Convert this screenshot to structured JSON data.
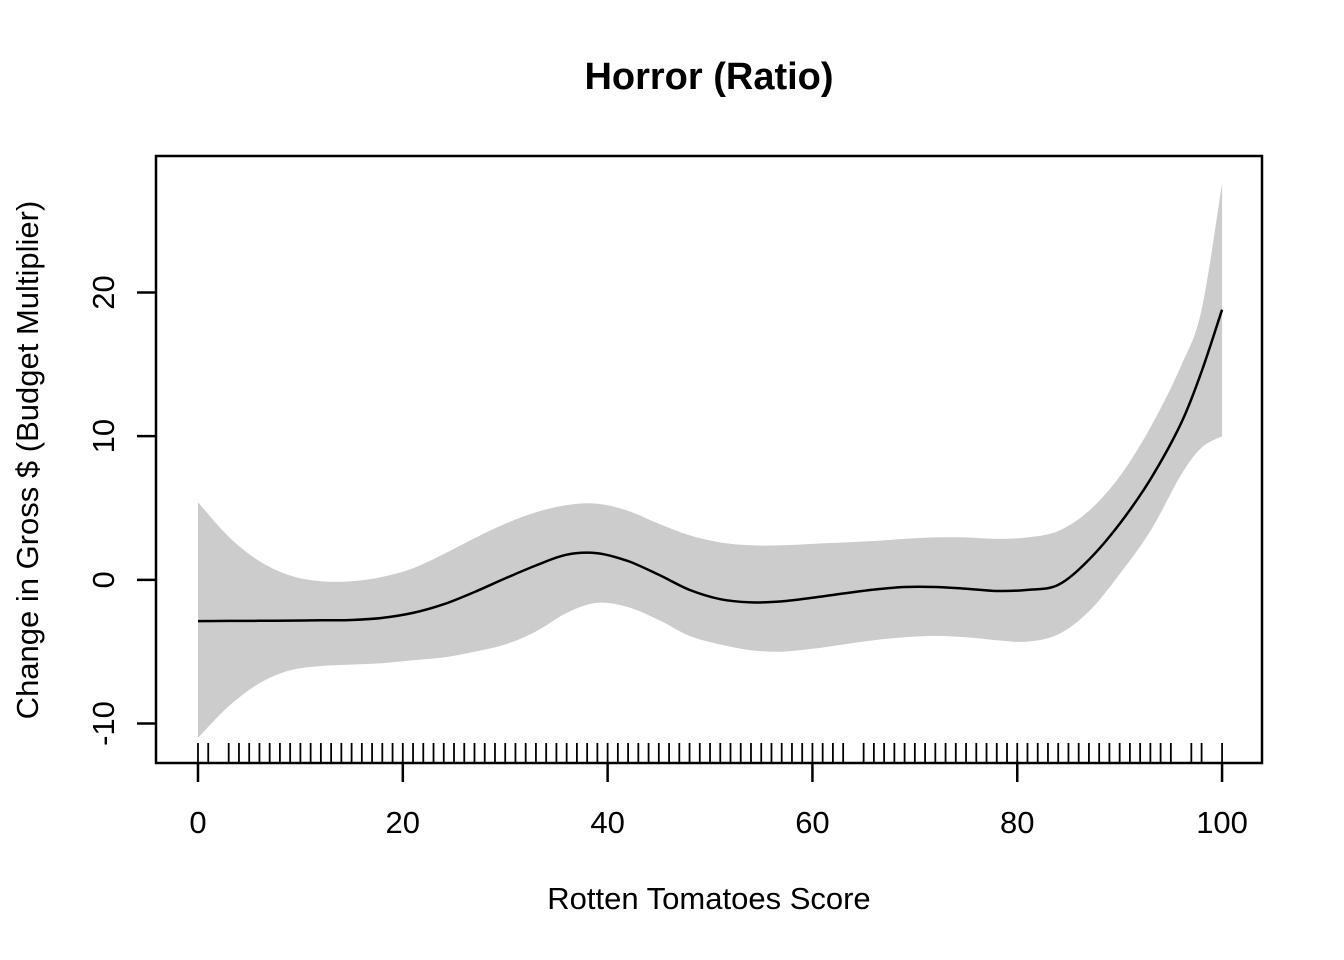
{
  "chart_data": {
    "type": "line",
    "title": "Horror (Ratio)",
    "xlabel": "Rotten Tomatoes Score",
    "ylabel": "Change in Gross $ (Budget Multiplier)",
    "xlim": [
      -4.1,
      103.9
    ],
    "ylim": [
      -12.75,
      29.5
    ],
    "x_ticks": [
      0,
      20,
      40,
      60,
      80,
      100
    ],
    "y_ticks": [
      -10,
      0,
      10,
      20
    ],
    "grid": false,
    "legend": "none",
    "band_color": "#cccccc",
    "line_color": "#000000",
    "x": [
      0,
      3,
      6,
      9,
      12,
      15,
      18,
      21,
      24,
      27,
      30,
      33,
      36,
      39,
      42,
      45,
      48,
      51,
      54,
      57,
      60,
      63,
      66,
      69,
      72,
      75,
      78,
      81,
      84,
      87,
      90,
      93,
      96,
      98,
      100
    ],
    "series": [
      {
        "name": "smooth_mean",
        "values": [
          -2.87,
          -2.86,
          -2.85,
          -2.84,
          -2.82,
          -2.8,
          -2.65,
          -2.3,
          -1.7,
          -0.85,
          0.1,
          1.0,
          1.75,
          1.85,
          1.3,
          0.35,
          -0.7,
          -1.35,
          -1.57,
          -1.5,
          -1.25,
          -0.95,
          -0.68,
          -0.5,
          -0.5,
          -0.62,
          -0.78,
          -0.7,
          -0.35,
          1.4,
          3.9,
          7.0,
          10.9,
          14.5,
          18.8
        ]
      },
      {
        "name": "ci_upper",
        "values": [
          5.4,
          3.0,
          1.3,
          0.3,
          -0.1,
          -0.1,
          0.2,
          0.8,
          1.8,
          2.9,
          3.9,
          4.7,
          5.2,
          5.3,
          4.8,
          3.9,
          3.1,
          2.6,
          2.4,
          2.4,
          2.5,
          2.6,
          2.7,
          2.85,
          2.95,
          2.95,
          2.85,
          2.95,
          3.4,
          4.8,
          7.2,
          10.6,
          14.9,
          18.8,
          27.6
        ]
      },
      {
        "name": "ci_lower",
        "values": [
          -11.0,
          -8.8,
          -7.2,
          -6.3,
          -6.0,
          -5.9,
          -5.8,
          -5.6,
          -5.4,
          -5.0,
          -4.5,
          -3.6,
          -2.3,
          -1.6,
          -1.9,
          -2.8,
          -3.9,
          -4.5,
          -4.9,
          -5.0,
          -4.8,
          -4.5,
          -4.2,
          -4.0,
          -3.9,
          -4.0,
          -4.2,
          -4.3,
          -3.8,
          -2.2,
          0.4,
          3.4,
          7.3,
          9.2,
          10.0
        ]
      }
    ],
    "rug_x": [
      0,
      1,
      3,
      4,
      5,
      6,
      7,
      8,
      9,
      10,
      11,
      12,
      13,
      14,
      15,
      16,
      17,
      18,
      19,
      20,
      21,
      22,
      23,
      24,
      25,
      26,
      27,
      28,
      29,
      30,
      31,
      32,
      33,
      34,
      35,
      36,
      37,
      38,
      39,
      40,
      41,
      42,
      43,
      44,
      45,
      46,
      47,
      48,
      49,
      50,
      51,
      52,
      53,
      54,
      55,
      56,
      57,
      58,
      59,
      60,
      61,
      62,
      63,
      65,
      66,
      67,
      68,
      69,
      70,
      71,
      72,
      73,
      74,
      75,
      76,
      77,
      78,
      79,
      80,
      81,
      82,
      83,
      84,
      85,
      86,
      87,
      88,
      89,
      90,
      91,
      92,
      93,
      94,
      95,
      97,
      98,
      100
    ]
  }
}
